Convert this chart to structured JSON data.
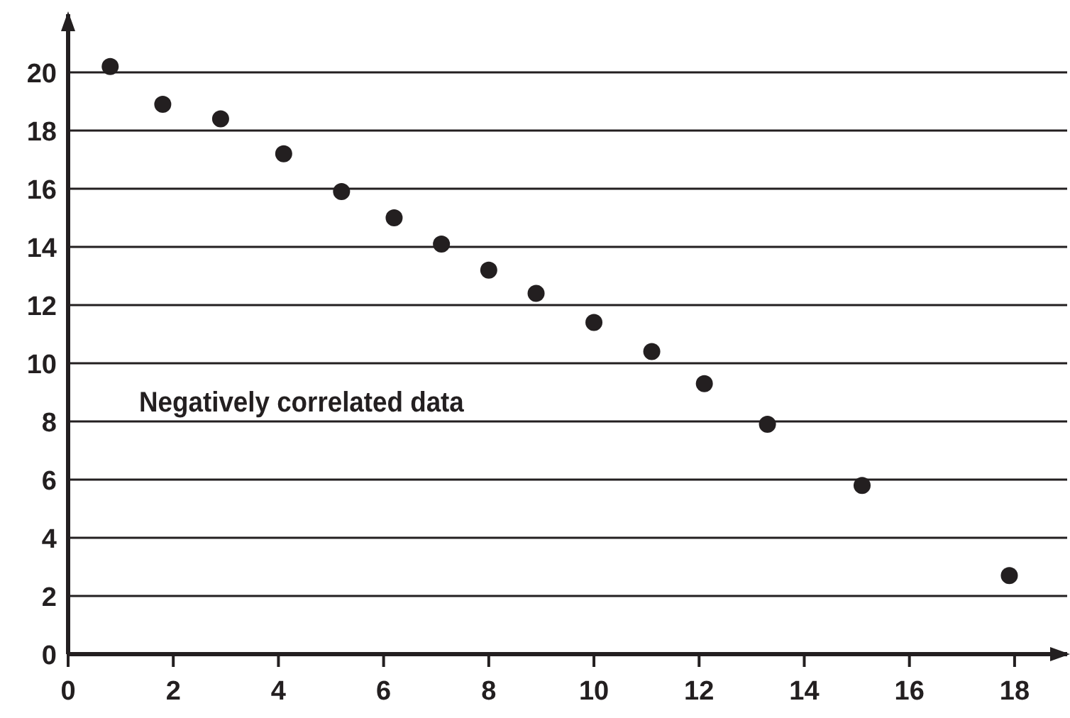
{
  "chart_data": {
    "type": "scatter",
    "x": [
      0.8,
      1.8,
      2.9,
      4.1,
      5.2,
      6.2,
      7.1,
      8.0,
      8.9,
      10.0,
      11.1,
      12.1,
      13.3,
      15.1,
      17.9
    ],
    "values": [
      20.2,
      18.9,
      18.4,
      17.2,
      15.9,
      15,
      14.1,
      13.2,
      12.4,
      11.4,
      10.4,
      9.3,
      7.9,
      5.8,
      2.7
    ],
    "color": "#231f20",
    "marker": "circle",
    "xlim": [
      0,
      19
    ],
    "ylim": [
      0,
      22
    ],
    "xticks": [
      0,
      2,
      4,
      6,
      8,
      10,
      12,
      14,
      16,
      18
    ],
    "yticks": [
      0,
      2,
      4,
      6,
      8,
      10,
      12,
      14,
      16,
      18,
      20
    ],
    "grid": "y",
    "annotations": [
      "Negatively correlated data"
    ]
  }
}
